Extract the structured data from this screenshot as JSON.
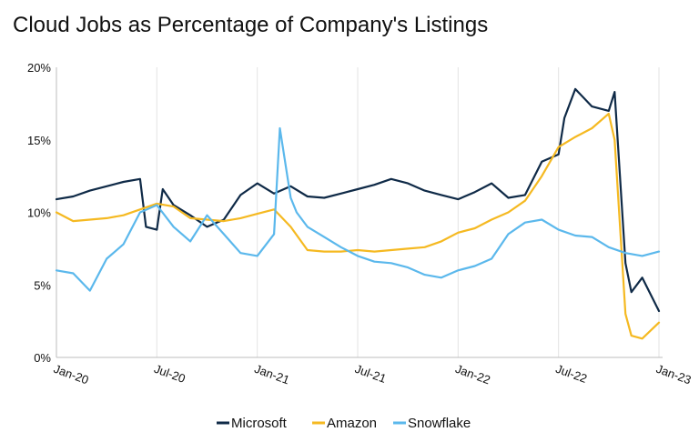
{
  "chart_data": {
    "type": "line",
    "title": "Cloud Jobs as Percentage of Company's Listings",
    "xlabel": "",
    "ylabel": "",
    "ylim": [
      0,
      20
    ],
    "y_ticks": [
      "0%",
      "5%",
      "10%",
      "15%",
      "20%"
    ],
    "x_ticks": [
      "Jan-20",
      "Jul-20",
      "Jan-21",
      "Jul-21",
      "Jan-22",
      "Jul-22",
      "Jan-23"
    ],
    "grid": "vertical gridlines",
    "legend_position": "bottom",
    "colors": {
      "Microsoft": "#0f2a47",
      "Amazon": "#f5b921",
      "Snowflake": "#5bb8ec"
    },
    "series": [
      {
        "name": "Microsoft",
        "x": [
          "2020-01",
          "2020-02",
          "2020-03",
          "2020-04",
          "2020-05",
          "2020-06",
          "2020-06",
          "2020-07",
          "2020-07",
          "2020-08",
          "2020-09",
          "2020-10",
          "2020-11",
          "2020-12",
          "2021-01",
          "2021-02",
          "2021-03",
          "2021-04",
          "2021-05",
          "2021-06",
          "2021-07",
          "2021-08",
          "2021-09",
          "2021-10",
          "2021-11",
          "2021-12",
          "2022-01",
          "2022-02",
          "2022-03",
          "2022-04",
          "2022-05",
          "2022-06",
          "2022-07",
          "2022-07",
          "2022-08",
          "2022-09",
          "2022-10",
          "2022-10",
          "2022-11",
          "2022-11",
          "2022-12",
          "2023-01"
        ],
        "values": [
          10.9,
          11.1,
          11.5,
          11.8,
          12.1,
          12.3,
          9.0,
          8.8,
          11.6,
          10.5,
          9.8,
          9.0,
          9.5,
          11.2,
          12.0,
          11.3,
          11.8,
          11.1,
          11.0,
          11.3,
          11.6,
          11.9,
          12.3,
          12.0,
          11.5,
          11.2,
          10.9,
          11.4,
          12.0,
          11.0,
          11.2,
          13.5,
          14.0,
          16.5,
          18.5,
          17.3,
          17.0,
          18.3,
          6.5,
          4.5,
          5.5,
          3.2
        ]
      },
      {
        "name": "Amazon",
        "x": [
          "2020-01",
          "2020-02",
          "2020-03",
          "2020-04",
          "2020-05",
          "2020-06",
          "2020-07",
          "2020-08",
          "2020-09",
          "2020-10",
          "2020-11",
          "2020-12",
          "2021-01",
          "2021-02",
          "2021-03",
          "2021-04",
          "2021-05",
          "2021-06",
          "2021-07",
          "2021-08",
          "2021-09",
          "2021-10",
          "2021-11",
          "2021-12",
          "2022-01",
          "2022-02",
          "2022-03",
          "2022-04",
          "2022-05",
          "2022-06",
          "2022-07",
          "2022-08",
          "2022-09",
          "2022-10",
          "2022-10",
          "2022-11",
          "2022-11",
          "2022-12",
          "2023-01"
        ],
        "values": [
          10.0,
          9.4,
          9.5,
          9.6,
          9.8,
          10.2,
          10.6,
          10.4,
          9.6,
          9.5,
          9.4,
          9.6,
          9.9,
          10.2,
          9.0,
          7.4,
          7.3,
          7.3,
          7.4,
          7.3,
          7.4,
          7.5,
          7.6,
          8.0,
          8.6,
          8.9,
          9.5,
          10.0,
          10.8,
          12.5,
          14.5,
          15.2,
          15.8,
          16.8,
          15.0,
          3.0,
          1.5,
          1.3,
          2.4
        ]
      },
      {
        "name": "Snowflake",
        "x": [
          "2020-01",
          "2020-02",
          "2020-03",
          "2020-04",
          "2020-05",
          "2020-06",
          "2020-07",
          "2020-08",
          "2020-09",
          "2020-10",
          "2020-11",
          "2020-12",
          "2021-01",
          "2021-02",
          "2021-02",
          "2021-03",
          "2021-03",
          "2021-04",
          "2021-05",
          "2021-06",
          "2021-07",
          "2021-08",
          "2021-09",
          "2021-10",
          "2021-11",
          "2021-12",
          "2022-01",
          "2022-02",
          "2022-03",
          "2022-04",
          "2022-05",
          "2022-06",
          "2022-07",
          "2022-08",
          "2022-09",
          "2022-10",
          "2022-11",
          "2022-12",
          "2023-01"
        ],
        "values": [
          6.0,
          5.8,
          4.6,
          6.8,
          7.8,
          10.0,
          10.5,
          9.0,
          8.0,
          9.8,
          8.5,
          7.2,
          7.0,
          8.5,
          15.8,
          11.0,
          10.0,
          9.0,
          8.3,
          7.6,
          7.0,
          6.6,
          6.5,
          6.2,
          5.7,
          5.5,
          6.0,
          6.3,
          6.8,
          8.5,
          9.3,
          9.5,
          8.8,
          8.4,
          8.3,
          7.6,
          7.2,
          7.0,
          7.3
        ]
      }
    ]
  }
}
